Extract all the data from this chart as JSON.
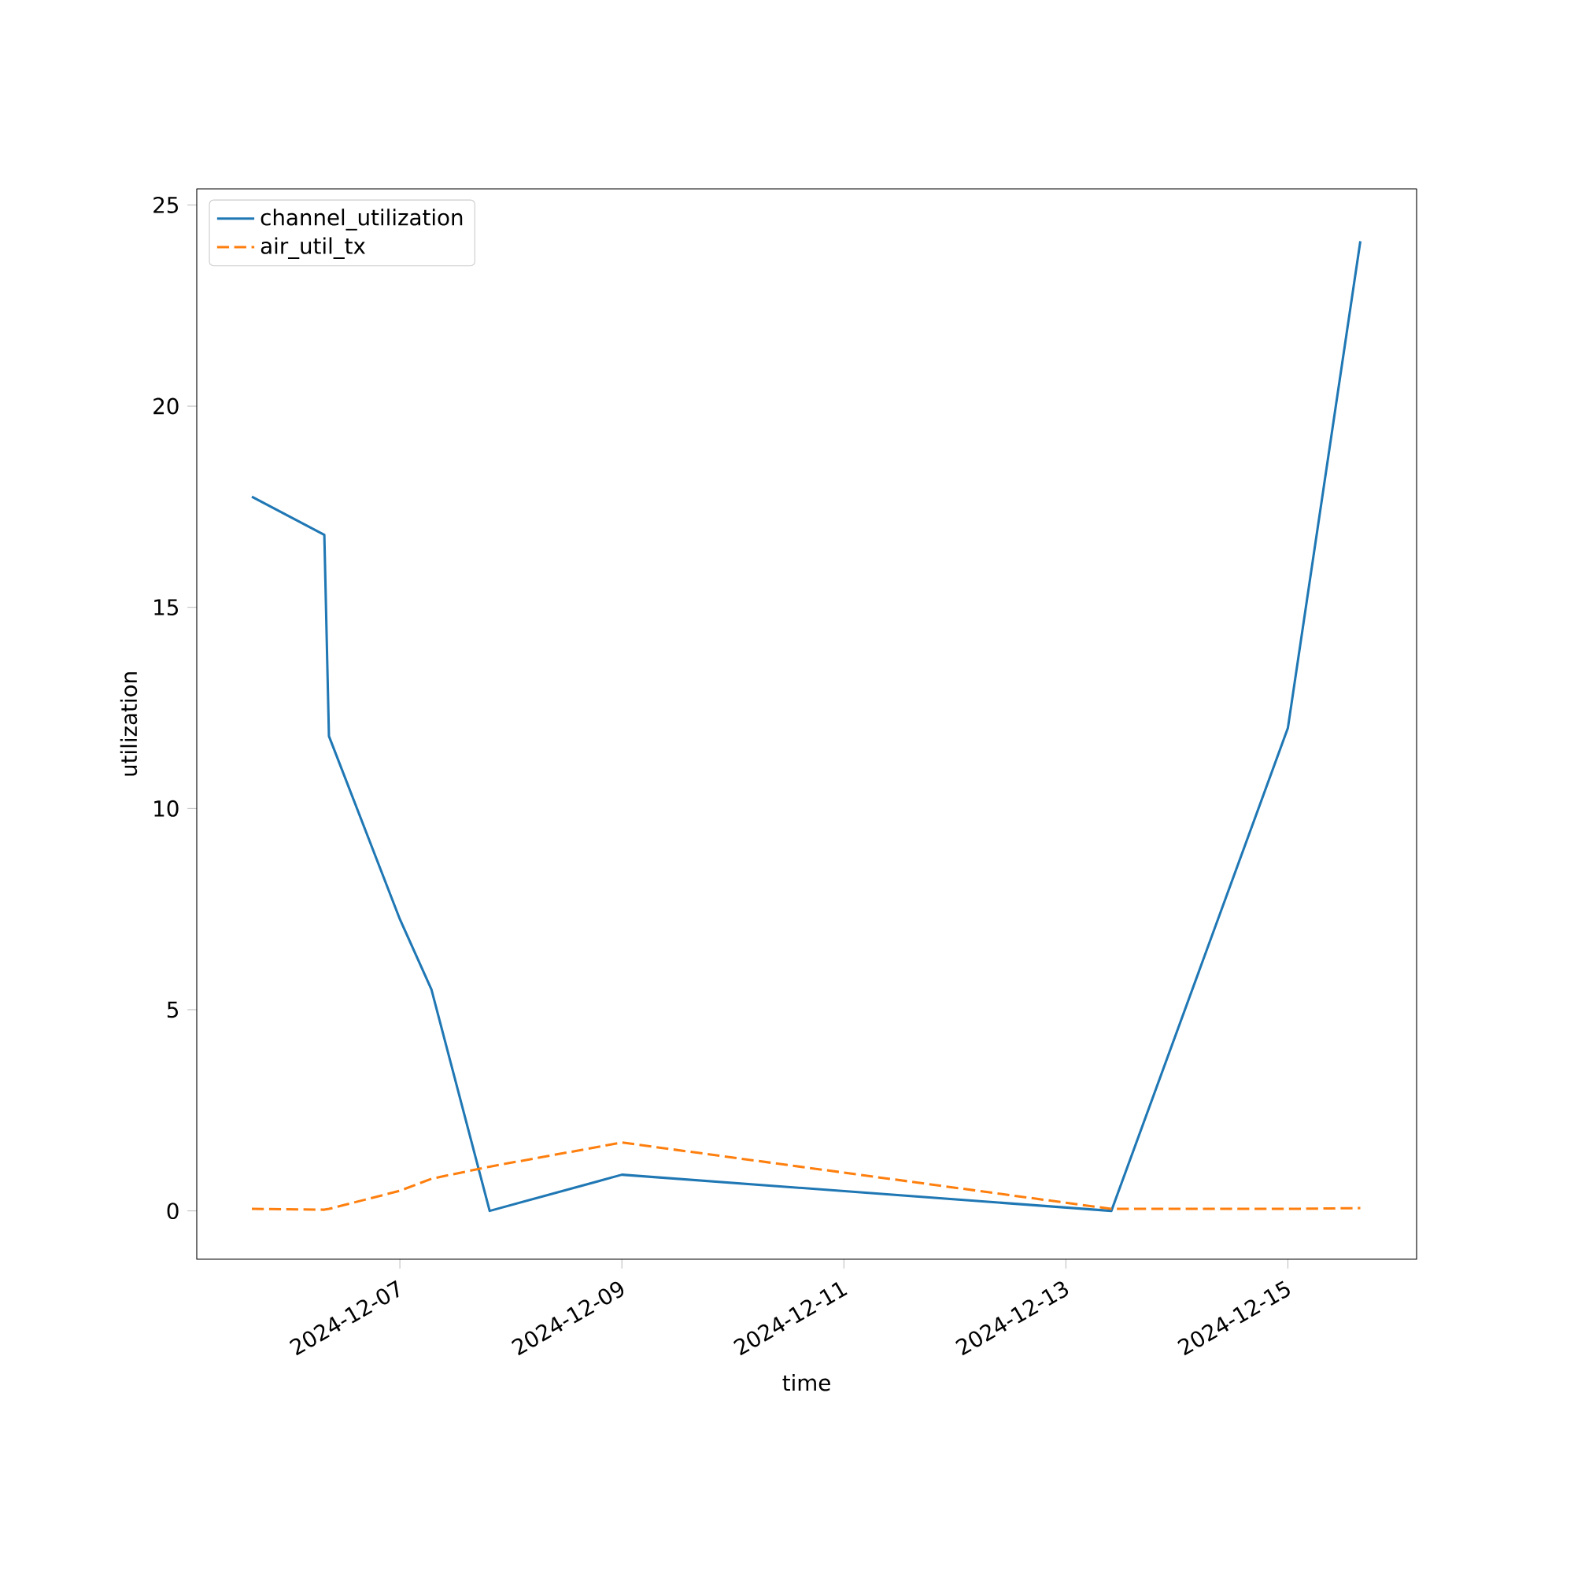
{
  "chart_data": {
    "type": "line",
    "xlabel": "time",
    "ylabel": "utilization",
    "x": [
      "2024-12-05T16:00",
      "2024-12-06T07:40",
      "2024-12-06T08:40",
      "2024-12-07T00:00",
      "2024-12-07T06:50",
      "2024-12-07T19:25",
      "2024-12-09T00:00",
      "2024-12-13T09:50",
      "2024-12-15T00:00",
      "2024-12-15T15:40"
    ],
    "series": [
      {
        "name": "channel_utilization",
        "color": "#1f77b4",
        "line_style": "solid",
        "values": [
          17.75,
          16.8,
          11.8,
          7.25,
          5.5,
          0,
          0.9,
          0,
          12.0,
          24.1
        ]
      },
      {
        "name": "air_util_tx",
        "color": "#ff7f0e",
        "line_style": "dashed",
        "values": [
          0.05,
          0.03,
          0.05,
          0.5,
          0.8,
          1.1,
          1.7,
          0.05,
          0.05,
          0.07
        ]
      }
    ],
    "xlim": [
      "2024-12-05T04:05",
      "2024-12-16T03:50"
    ],
    "ylim": [
      -1.2,
      25.4
    ],
    "xticks": [
      "2024-12-07",
      "2024-12-09",
      "2024-12-11",
      "2024-12-13",
      "2024-12-15"
    ],
    "yticks": [
      0,
      5,
      10,
      15,
      20,
      25
    ],
    "grid": false,
    "legend": "top left",
    "marker": "none"
  }
}
